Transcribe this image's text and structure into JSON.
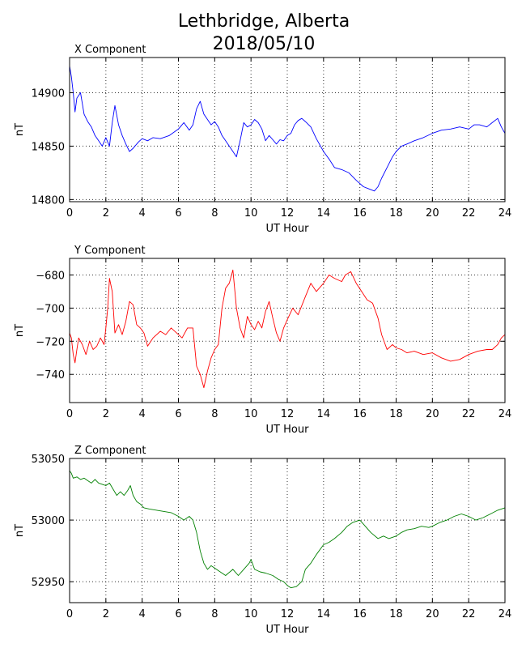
{
  "title_line1": "Lethbridge, Alberta",
  "title_line2": "2018/05/10",
  "chart_data": [
    {
      "type": "line",
      "panel_title": "X Component",
      "xlabel": "UT Hour",
      "ylabel": "nT",
      "xlim": [
        0,
        24
      ],
      "ylim": [
        14798,
        14933
      ],
      "xticks": [
        0,
        2,
        4,
        6,
        8,
        10,
        12,
        14,
        16,
        18,
        20,
        22,
        24
      ],
      "yticks": [
        14800,
        14850,
        14900
      ],
      "grid": true,
      "color": "#0000ff",
      "series": [
        {
          "x": [
            0,
            0.1,
            0.2,
            0.3,
            0.4,
            0.6,
            0.8,
            1.0,
            1.2,
            1.4,
            1.6,
            1.8,
            2.0,
            2.2,
            2.35,
            2.5,
            2.7,
            2.9,
            3.1,
            3.3,
            3.5,
            3.8,
            4.0,
            4.3,
            4.6,
            5.0,
            5.5,
            6.0,
            6.3,
            6.6,
            6.8,
            7.0,
            7.2,
            7.4,
            7.6,
            7.8,
            8.0,
            8.2,
            8.4,
            8.6,
            8.8,
            9.0,
            9.2,
            9.4,
            9.6,
            9.8,
            10.0,
            10.2,
            10.4,
            10.6,
            10.8,
            11.0,
            11.2,
            11.4,
            11.6,
            11.8,
            12.0,
            12.2,
            12.4,
            12.6,
            12.8,
            13.0,
            13.3,
            13.6,
            14.0,
            14.3,
            14.6,
            15.0,
            15.4,
            15.8,
            16.2,
            16.5,
            16.8,
            17.0,
            17.2,
            17.5,
            17.8,
            18.0,
            18.3,
            18.6,
            19.0,
            19.5,
            20.0,
            20.5,
            21.0,
            21.5,
            22.0,
            22.3,
            22.6,
            23.0,
            23.3,
            23.6,
            23.8,
            24.0
          ],
          "y": [
            14925,
            14915,
            14900,
            14882,
            14895,
            14900,
            14880,
            14873,
            14868,
            14860,
            14855,
            14850,
            14858,
            14850,
            14872,
            14888,
            14870,
            14860,
            14852,
            14845,
            14848,
            14854,
            14857,
            14855,
            14858,
            14857,
            14860,
            14866,
            14872,
            14865,
            14870,
            14885,
            14892,
            14880,
            14875,
            14870,
            14873,
            14868,
            14860,
            14855,
            14850,
            14845,
            14840,
            14855,
            14872,
            14868,
            14870,
            14875,
            14872,
            14866,
            14855,
            14860,
            14856,
            14852,
            14856,
            14855,
            14860,
            14862,
            14870,
            14874,
            14876,
            14873,
            14868,
            14857,
            14845,
            14838,
            14830,
            14828,
            14825,
            14818,
            14812,
            14810,
            14808,
            14812,
            14820,
            14830,
            14840,
            14845,
            14850,
            14852,
            14855,
            14858,
            14862,
            14865,
            14866,
            14868,
            14866,
            14870,
            14870,
            14868,
            14872,
            14876,
            14868,
            14862
          ]
        }
      ]
    },
    {
      "type": "line",
      "panel_title": "Y Component",
      "xlabel": "UT Hour",
      "ylabel": "nT",
      "xlim": [
        0,
        24
      ],
      "ylim": [
        -757,
        -670
      ],
      "xticks": [
        0,
        2,
        4,
        6,
        8,
        10,
        12,
        14,
        16,
        18,
        20,
        22,
        24
      ],
      "yticks": [
        -740,
        -720,
        -700,
        -680
      ],
      "grid": true,
      "color": "#ff0000",
      "series": [
        {
          "x": [
            0,
            0.1,
            0.2,
            0.3,
            0.4,
            0.5,
            0.7,
            0.9,
            1.1,
            1.3,
            1.5,
            1.7,
            1.9,
            2.0,
            2.1,
            2.2,
            2.35,
            2.5,
            2.7,
            2.9,
            3.1,
            3.3,
            3.5,
            3.7,
            3.9,
            4.1,
            4.3,
            4.6,
            5.0,
            5.3,
            5.6,
            5.9,
            6.2,
            6.5,
            6.8,
            7.0,
            7.2,
            7.4,
            7.6,
            7.8,
            8.0,
            8.2,
            8.4,
            8.6,
            8.8,
            9.0,
            9.2,
            9.4,
            9.6,
            9.8,
            10.0,
            10.2,
            10.4,
            10.6,
            10.8,
            11.0,
            11.2,
            11.4,
            11.6,
            11.8,
            12.0,
            12.3,
            12.6,
            13.0,
            13.3,
            13.6,
            14.0,
            14.3,
            14.6,
            15.0,
            15.2,
            15.5,
            15.8,
            16.1,
            16.4,
            16.7,
            17.0,
            17.2,
            17.5,
            17.8,
            18.0,
            18.3,
            18.6,
            19.0,
            19.5,
            20.0,
            20.5,
            21.0,
            21.5,
            22.0,
            22.5,
            23.0,
            23.3,
            23.6,
            23.8,
            24.0
          ],
          "y": [
            -715,
            -718,
            -728,
            -733,
            -725,
            -718,
            -722,
            -728,
            -720,
            -725,
            -723,
            -718,
            -722,
            -712,
            -700,
            -682,
            -690,
            -715,
            -710,
            -716,
            -708,
            -696,
            -698,
            -710,
            -712,
            -715,
            -723,
            -718,
            -714,
            -716,
            -712,
            -715,
            -718,
            -712,
            -712,
            -735,
            -740,
            -748,
            -738,
            -730,
            -725,
            -722,
            -700,
            -688,
            -685,
            -677,
            -700,
            -712,
            -718,
            -705,
            -710,
            -713,
            -708,
            -712,
            -702,
            -696,
            -706,
            -715,
            -720,
            -712,
            -707,
            -700,
            -704,
            -693,
            -685,
            -690,
            -685,
            -680,
            -682,
            -684,
            -680,
            -678,
            -685,
            -690,
            -695,
            -697,
            -706,
            -716,
            -725,
            -722,
            -724,
            -725,
            -727,
            -726,
            -728,
            -727,
            -730,
            -732,
            -731,
            -728,
            -726,
            -725,
            -725,
            -722,
            -718,
            -716
          ]
        }
      ]
    },
    {
      "type": "line",
      "panel_title": "Z Component",
      "xlabel": "UT Hour",
      "ylabel": "nT",
      "xlim": [
        0,
        24
      ],
      "ylim": [
        52933,
        53050
      ],
      "xticks": [
        0,
        2,
        4,
        6,
        8,
        10,
        12,
        14,
        16,
        18,
        20,
        22,
        24
      ],
      "yticks": [
        52950,
        53000,
        53050
      ],
      "grid": true,
      "color": "#008000",
      "series": [
        {
          "x": [
            0,
            0.1,
            0.2,
            0.4,
            0.6,
            0.8,
            1.0,
            1.2,
            1.4,
            1.6,
            1.8,
            2.0,
            2.2,
            2.4,
            2.6,
            2.8,
            3.0,
            3.2,
            3.35,
            3.5,
            3.7,
            3.9,
            4.1,
            4.4,
            4.8,
            5.2,
            5.6,
            6.0,
            6.3,
            6.6,
            6.8,
            7.0,
            7.2,
            7.4,
            7.6,
            7.8,
            8.0,
            8.3,
            8.6,
            9.0,
            9.3,
            9.6,
            9.9,
            10.0,
            10.2,
            10.5,
            10.8,
            11.2,
            11.5,
            11.8,
            12.0,
            12.2,
            12.5,
            12.8,
            13.0,
            13.3,
            13.6,
            14.0,
            14.3,
            14.6,
            15.0,
            15.3,
            15.6,
            16.0,
            16.3,
            16.6,
            17.0,
            17.3,
            17.6,
            18.0,
            18.3,
            18.6,
            19.0,
            19.4,
            19.8,
            20.0,
            20.4,
            20.8,
            21.2,
            21.6,
            22.0,
            22.4,
            22.8,
            23.2,
            23.6,
            24.0
          ],
          "y": [
            53040,
            53038,
            53034,
            53035,
            53033,
            53034,
            53032,
            53030,
            53033,
            53030,
            53029,
            53028,
            53030,
            53025,
            53020,
            53023,
            53020,
            53024,
            53028,
            53020,
            53015,
            53013,
            53010,
            53009,
            53008,
            53007,
            53006,
            53003,
            53000,
            53003,
            53000,
            52990,
            52975,
            52965,
            52960,
            52963,
            52961,
            52958,
            52955,
            52960,
            52955,
            52960,
            52965,
            52968,
            52960,
            52958,
            52957,
            52955,
            52952,
            52950,
            52947,
            52945,
            52946,
            52950,
            52960,
            52965,
            52972,
            52980,
            52982,
            52985,
            52990,
            52995,
            52998,
            53000,
            52995,
            52990,
            52985,
            52987,
            52985,
            52987,
            52990,
            52992,
            52993,
            52995,
            52994,
            52995,
            52998,
            53000,
            53003,
            53005,
            53003,
            53000,
            53002,
            53005,
            53008,
            53010
          ]
        }
      ]
    }
  ]
}
